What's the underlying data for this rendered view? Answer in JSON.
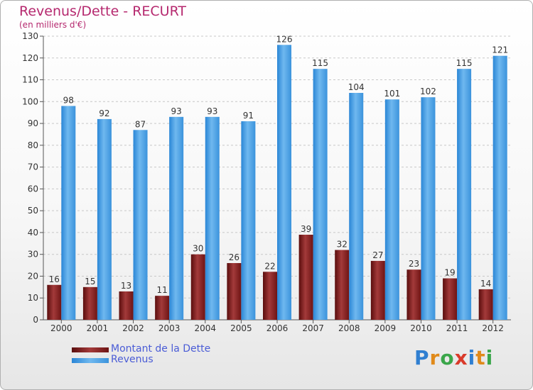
{
  "chart_data": {
    "type": "bar",
    "title": "Revenus/Dette - RECURT",
    "subtitle": "(en milliers d'€)",
    "categories": [
      "2000",
      "2001",
      "2002",
      "2003",
      "2004",
      "2005",
      "2006",
      "2007",
      "2008",
      "2009",
      "2010",
      "2011",
      "2012"
    ],
    "series": [
      {
        "name": "Montant de la Dette",
        "color": "#7a1a1a",
        "values": [
          16,
          15,
          13,
          11,
          30,
          26,
          22,
          39,
          32,
          27,
          23,
          19,
          14
        ]
      },
      {
        "name": "Revenus",
        "color": "#3b93dc",
        "values": [
          98,
          92,
          87,
          93,
          93,
          91,
          126,
          115,
          104,
          101,
          102,
          115,
          121
        ]
      }
    ],
    "ylim": [
      0,
      130
    ],
    "yticks": [
      0,
      10,
      20,
      30,
      40,
      50,
      60,
      70,
      80,
      90,
      100,
      110,
      120,
      130
    ],
    "grid": true,
    "legend_position": "bottom-left"
  },
  "brand": {
    "text": "Proxiti",
    "letter_colors": [
      "#2f7fd1",
      "#e08a1a",
      "#3aa64a",
      "#d93a2a",
      "#2f7fd1",
      "#e08a1a",
      "#3aa64a"
    ]
  }
}
